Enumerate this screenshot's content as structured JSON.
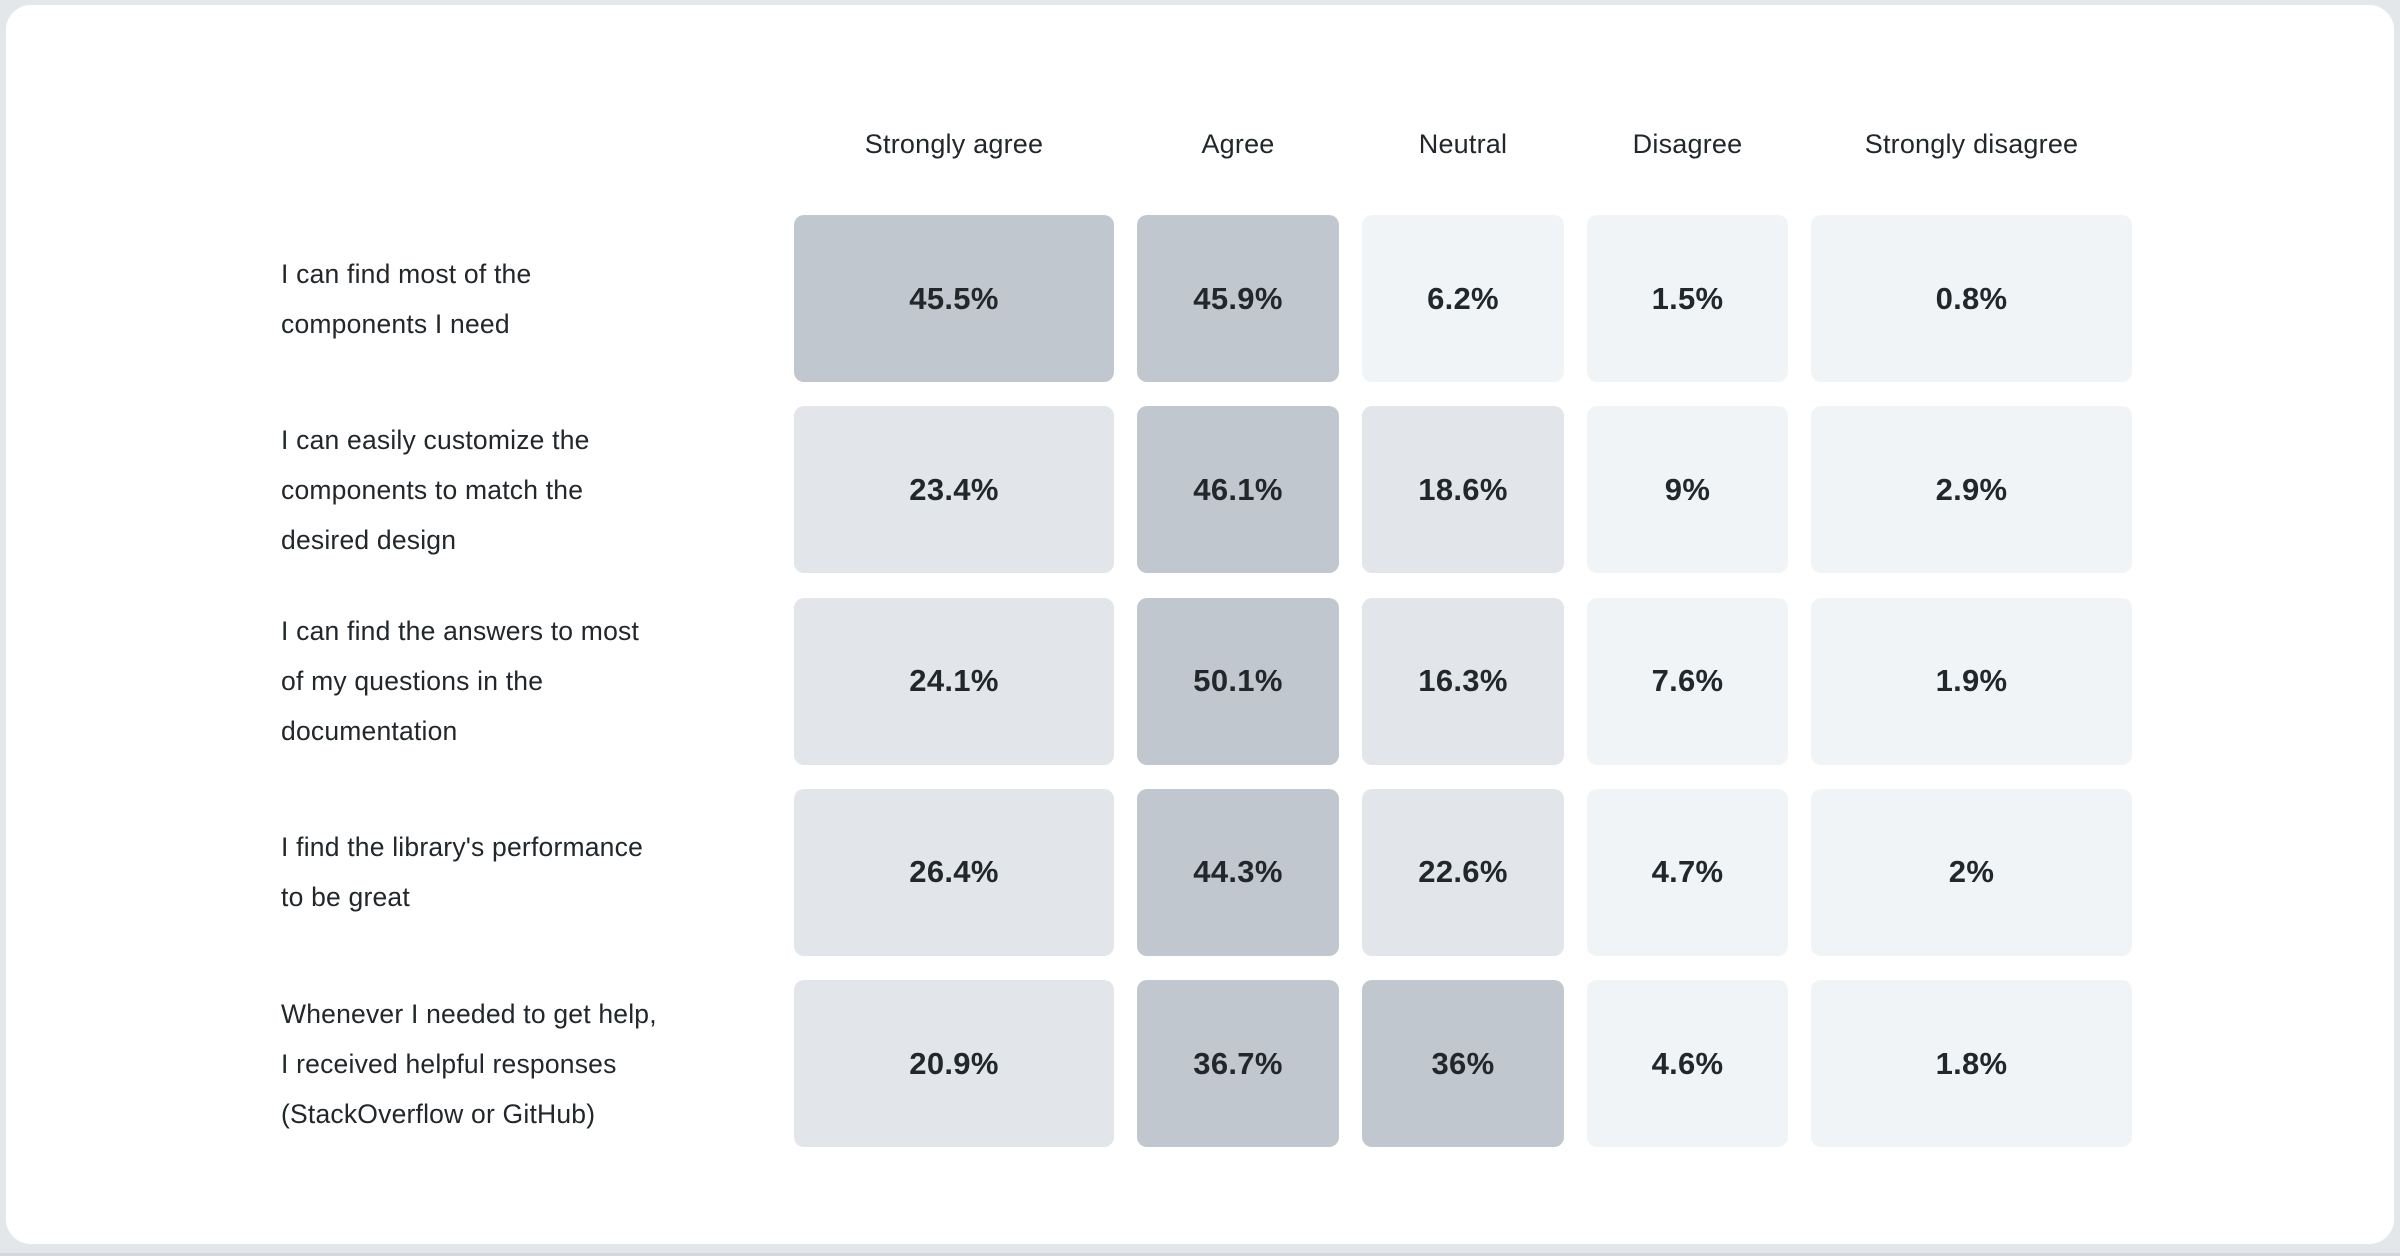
{
  "page": {
    "background": "#e4e7ea",
    "card_background": "#ffffff"
  },
  "chart_data": {
    "type": "heatmap",
    "title": "",
    "columns": [
      "Strongly agree",
      "Agree",
      "Neutral",
      "Disagree",
      "Strongly disagree"
    ],
    "rows": [
      {
        "label": "I can find most of the\ncomponents I need",
        "values": [
          45.5,
          45.9,
          6.2,
          1.5,
          0.8
        ]
      },
      {
        "label": "I can easily customize the\ncomponents to match the\ndesired design",
        "values": [
          23.4,
          46.1,
          18.6,
          9,
          2.9
        ]
      },
      {
        "label": "I can find the answers to most\nof my questions in the\ndocumentation",
        "values": [
          24.1,
          50.1,
          16.3,
          7.6,
          1.9
        ]
      },
      {
        "label": "I find the library's performance\nto be great",
        "values": [
          26.4,
          44.3,
          22.6,
          4.7,
          2
        ]
      },
      {
        "label": "Whenever I needed to get help,\nI received helpful responses\n(StackOverflow or GitHub)",
        "values": [
          20.9,
          36.7,
          36,
          4.6,
          1.8
        ]
      }
    ],
    "value_suffix": "%",
    "text_color": "#21272a",
    "color_scale": {
      "legend_position": "none",
      "bins": [
        {
          "min_value": 30,
          "color": "#c1c7ce"
        },
        {
          "min_value": 10,
          "color": "#e2e6ea"
        },
        {
          "min_value": 0,
          "color": "#f1f4f6"
        }
      ]
    },
    "layout_hints": {
      "grid": "off",
      "axes": "none",
      "column_headers_position": "top"
    }
  }
}
